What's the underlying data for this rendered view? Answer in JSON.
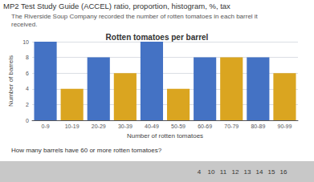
{
  "chart_data": {
    "type": "bar",
    "title": "Rotten tomatoes per barrel",
    "x_label": "Number of rotten tomatoes",
    "y_label": "Number of barrels",
    "categories": [
      "0-9",
      "10-19",
      "20-29",
      "30-39",
      "40-49",
      "50-59",
      "60-69",
      "70-79",
      "80-89",
      "90-99"
    ],
    "values": [
      10,
      4,
      8,
      6,
      10,
      4,
      8,
      8,
      8,
      6
    ],
    "colors": [
      "#4472C4",
      "#DAA520",
      "#4472C4",
      "#DAA520",
      "#4472C4",
      "#DAA520",
      "#4472C4",
      "#DAA520",
      "#4472C4",
      "#DAA520"
    ],
    "ylim": [
      0,
      10
    ],
    "yticks": [
      0,
      2,
      4,
      6,
      8,
      10
    ],
    "grid": true,
    "annotations": [
      "MP2 Test Study Guide (ACCEL) ratio, proportion, histogram, %, tax",
      "The Riverside Soup Company recorded the number of rotten tomatoes in each barrel it\nreceived.",
      "How many barrels have 60 or more rotten tomatoes?",
      "4",
      "10",
      "11",
      "12",
      "13",
      "14",
      "15",
      "16"
    ]
  }
}
